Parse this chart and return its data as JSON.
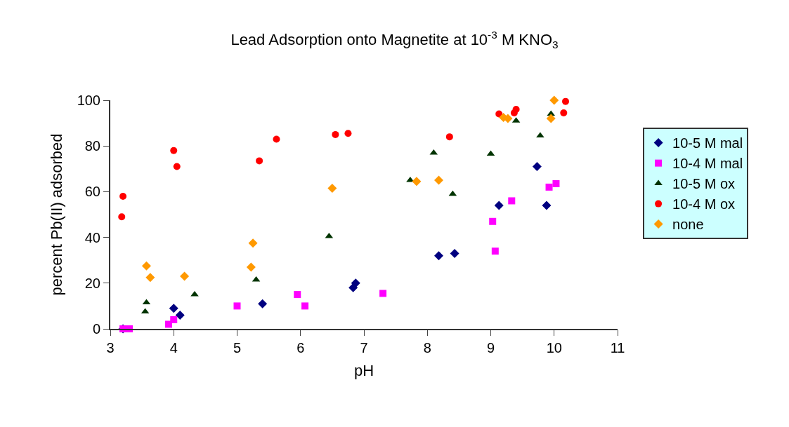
{
  "chart_data": {
    "type": "scatter",
    "title": "Lead Adsorption onto Magnetite at 10$^{-3}$ M KNO$_{3}$",
    "xlabel": "pH",
    "ylabel": "percent Pb(II) adsorbed",
    "xlim": [
      3,
      11
    ],
    "xticks": [
      3,
      4,
      5,
      6,
      7,
      8,
      9,
      10,
      11
    ],
    "ylim": [
      0,
      100
    ],
    "yticks": [
      0,
      20,
      40,
      60,
      80,
      100
    ],
    "grid": false,
    "legend": "right",
    "series": [
      {
        "name": "10-5 M mal",
        "color": "#000080",
        "marker": "diamond",
        "x": [
          3.2,
          4.0,
          4.1,
          5.4,
          6.83,
          6.87,
          8.18,
          8.43,
          9.02,
          9.13,
          9.73,
          9.88
        ],
        "values": [
          0,
          9,
          6,
          11,
          18,
          20,
          32,
          33,
          null,
          54,
          71,
          54
        ]
      },
      {
        "name": "10-4 M mal",
        "color": "#ff00ff",
        "marker": "square",
        "x": [
          3.2,
          3.3,
          3.92,
          4.0,
          5.0,
          5.95,
          6.07,
          7.3,
          9.03,
          9.07,
          9.33,
          9.92,
          10.03
        ],
        "values": [
          0,
          0,
          2,
          4,
          10,
          15,
          10,
          15.5,
          47,
          34,
          56,
          62,
          63.5
        ]
      },
      {
        "name": "10-5 M ox",
        "color": "#003300",
        "marker": "triangle",
        "x": [
          3.55,
          3.57,
          4.33,
          5.3,
          6.45,
          7.73,
          8.1,
          8.4,
          9.0,
          9.4,
          9.78,
          9.95
        ],
        "values": [
          7.5,
          11.5,
          15,
          21.5,
          40.5,
          65,
          77,
          59,
          76.5,
          91,
          84.5,
          94
        ]
      },
      {
        "name": "10-4 M ox",
        "color": "#ff0000",
        "marker": "circle",
        "x": [
          3.18,
          3.2,
          4.0,
          4.05,
          5.35,
          5.62,
          6.55,
          6.75,
          8.35,
          9.13,
          9.37,
          9.4,
          10.18,
          10.15
        ],
        "values": [
          49,
          58,
          78,
          71,
          73.5,
          83,
          85,
          85.5,
          84,
          94,
          94.5,
          96,
          99.5,
          94.5
        ]
      },
      {
        "name": "none",
        "color": "#ff9900",
        "marker": "diamond",
        "x": [
          3.57,
          3.63,
          4.17,
          5.22,
          5.25,
          6.5,
          7.83,
          8.18,
          9.2,
          9.27,
          9.95,
          10.0
        ],
        "values": [
          27.5,
          22.5,
          23,
          27,
          37.5,
          61.5,
          64.5,
          65,
          92.5,
          92,
          92,
          100
        ]
      }
    ]
  }
}
